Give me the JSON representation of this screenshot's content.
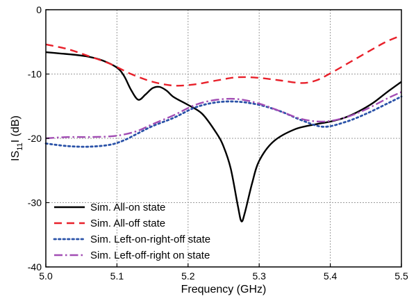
{
  "chart_data": {
    "type": "line",
    "title": "",
    "xlabel": "Frequency (GHz)",
    "ylabel_main": "IS",
    "ylabel_sub": "11",
    "ylabel_tail": "I (dB)",
    "xlim": [
      5.0,
      5.5
    ],
    "ylim": [
      -40,
      0
    ],
    "xticks": [
      5.0,
      5.1,
      5.2,
      5.3,
      5.4,
      5.5
    ],
    "xtick_labels": [
      "5.0",
      "5.1",
      "5.2",
      "5.3",
      "5.4",
      "5.5"
    ],
    "yticks": [
      0,
      -10,
      -20,
      -30,
      -40
    ],
    "ytick_labels": [
      "0",
      "-10",
      "-20",
      "-30",
      "-40"
    ],
    "grid": true,
    "legend_position": "bottom-left",
    "series": [
      {
        "name": "Sim. All-on state",
        "color": "#000000",
        "dash": "solid",
        "points": [
          [
            5.0,
            -6.6
          ],
          [
            5.02,
            -6.8
          ],
          [
            5.04,
            -7.0
          ],
          [
            5.06,
            -7.3
          ],
          [
            5.08,
            -7.9
          ],
          [
            5.1,
            -9.0
          ],
          [
            5.11,
            -10.3
          ],
          [
            5.12,
            -12.5
          ],
          [
            5.13,
            -14.0
          ],
          [
            5.14,
            -13.2
          ],
          [
            5.15,
            -12.2
          ],
          [
            5.16,
            -12.0
          ],
          [
            5.17,
            -12.6
          ],
          [
            5.18,
            -13.6
          ],
          [
            5.2,
            -14.8
          ],
          [
            5.22,
            -16.2
          ],
          [
            5.24,
            -19.2
          ],
          [
            5.25,
            -21.3
          ],
          [
            5.26,
            -24.7
          ],
          [
            5.27,
            -30.5
          ],
          [
            5.275,
            -32.9
          ],
          [
            5.28,
            -31.5
          ],
          [
            5.29,
            -27.0
          ],
          [
            5.3,
            -23.5
          ],
          [
            5.32,
            -20.5
          ],
          [
            5.35,
            -18.6
          ],
          [
            5.38,
            -17.8
          ],
          [
            5.4,
            -17.4
          ],
          [
            5.42,
            -16.8
          ],
          [
            5.44,
            -15.8
          ],
          [
            5.46,
            -14.5
          ],
          [
            5.48,
            -12.8
          ],
          [
            5.5,
            -11.2
          ]
        ]
      },
      {
        "name": "Sim. All-off state",
        "color": "#e8202a",
        "dash": "dashed",
        "points": [
          [
            5.0,
            -5.4
          ],
          [
            5.03,
            -6.1
          ],
          [
            5.06,
            -7.2
          ],
          [
            5.09,
            -8.4
          ],
          [
            5.12,
            -10.0
          ],
          [
            5.15,
            -11.2
          ],
          [
            5.18,
            -11.8
          ],
          [
            5.21,
            -11.6
          ],
          [
            5.24,
            -11.0
          ],
          [
            5.27,
            -10.5
          ],
          [
            5.3,
            -10.6
          ],
          [
            5.33,
            -11.0
          ],
          [
            5.36,
            -11.4
          ],
          [
            5.38,
            -11.0
          ],
          [
            5.4,
            -9.9
          ],
          [
            5.43,
            -8.0
          ],
          [
            5.46,
            -6.1
          ],
          [
            5.48,
            -4.9
          ],
          [
            5.5,
            -4.0
          ]
        ]
      },
      {
        "name": "Sim. Left-on-right-off state",
        "color": "#2a52a8",
        "dash": "dotted",
        "points": [
          [
            5.0,
            -20.8
          ],
          [
            5.03,
            -21.2
          ],
          [
            5.06,
            -21.3
          ],
          [
            5.09,
            -21.0
          ],
          [
            5.11,
            -20.3
          ],
          [
            5.13,
            -19.2
          ],
          [
            5.15,
            -18.1
          ],
          [
            5.18,
            -16.8
          ],
          [
            5.21,
            -15.2
          ],
          [
            5.24,
            -14.4
          ],
          [
            5.27,
            -14.3
          ],
          [
            5.3,
            -14.8
          ],
          [
            5.33,
            -15.8
          ],
          [
            5.36,
            -17.2
          ],
          [
            5.39,
            -18.2
          ],
          [
            5.42,
            -17.5
          ],
          [
            5.45,
            -16.2
          ],
          [
            5.48,
            -14.6
          ],
          [
            5.5,
            -13.5
          ]
        ]
      },
      {
        "name": "Sim. Left-off-right on state",
        "color": "#a24db4",
        "dash": "dashdot",
        "points": [
          [
            5.0,
            -20.0
          ],
          [
            5.03,
            -19.8
          ],
          [
            5.06,
            -19.8
          ],
          [
            5.09,
            -19.7
          ],
          [
            5.11,
            -19.4
          ],
          [
            5.13,
            -18.8
          ],
          [
            5.15,
            -17.8
          ],
          [
            5.18,
            -16.4
          ],
          [
            5.21,
            -14.8
          ],
          [
            5.24,
            -14.0
          ],
          [
            5.27,
            -13.9
          ],
          [
            5.3,
            -14.6
          ],
          [
            5.33,
            -15.8
          ],
          [
            5.36,
            -17.0
          ],
          [
            5.39,
            -17.4
          ],
          [
            5.42,
            -16.8
          ],
          [
            5.45,
            -15.5
          ],
          [
            5.48,
            -13.8
          ],
          [
            5.5,
            -12.8
          ]
        ]
      }
    ]
  }
}
